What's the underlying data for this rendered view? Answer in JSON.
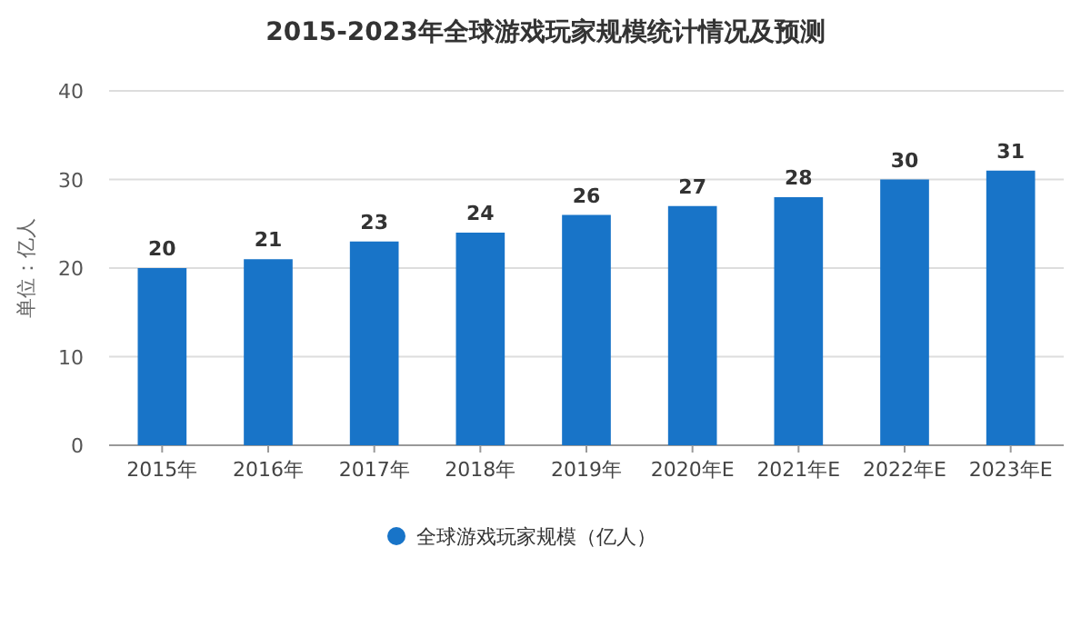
{
  "chart_data": {
    "type": "bar",
    "title": "2015-2023年全球游戏玩家规模统计情况及预测",
    "ylabel": "单位：亿人",
    "categories": [
      "2015年",
      "2016年",
      "2017年",
      "2018年",
      "2019年",
      "2020年E",
      "2021年E",
      "2022年E",
      "2023年E"
    ],
    "series": [
      {
        "name": "全球游戏玩家规模（亿人）",
        "color": "#1874c8",
        "values": [
          20,
          21,
          23,
          24,
          26,
          27,
          28,
          30,
          31
        ]
      }
    ],
    "ylim": [
      0,
      40
    ],
    "yticks": [
      0,
      10,
      20,
      30,
      40
    ],
    "grid": "y",
    "legend": "bottom",
    "data_labels": true
  }
}
